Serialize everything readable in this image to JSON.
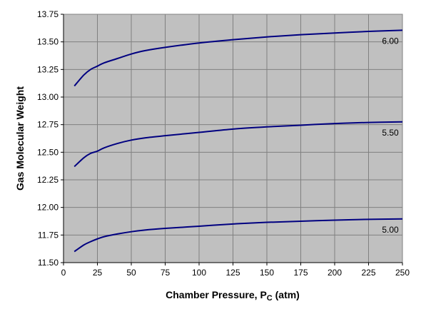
{
  "chart_data": {
    "type": "line",
    "title": "",
    "xlabel": "Chamber Pressure, ",
    "xlabel_symbol": "P",
    "xlabel_subscript": "C",
    "xlabel_unit": " (atm)",
    "ylabel": "Gas Molecular Weight",
    "xlim": [
      0,
      250
    ],
    "ylim": [
      11.5,
      13.75
    ],
    "x_ticks": [
      0,
      25,
      50,
      75,
      100,
      125,
      150,
      175,
      200,
      225,
      250
    ],
    "x_tick_labels": [
      "0",
      "25",
      "50",
      "75",
      "100",
      "125",
      "150",
      "175",
      "200",
      "225",
      "250"
    ],
    "y_ticks": [
      11.5,
      11.75,
      12.0,
      12.25,
      12.5,
      12.75,
      13.0,
      13.25,
      13.5,
      13.75
    ],
    "y_tick_labels": [
      "11.50",
      "11.75",
      "12.00",
      "12.25",
      "12.50",
      "12.75",
      "13.00",
      "13.25",
      "13.50",
      "13.75"
    ],
    "grid": true,
    "plot_background": "#C0C0C0",
    "grid_color": "#808080",
    "line_color": "#000080",
    "series": [
      {
        "label": "6.00",
        "x": [
          8,
          15,
          20,
          25,
          30,
          40,
          50,
          60,
          75,
          100,
          125,
          150,
          175,
          200,
          225,
          250
        ],
        "y": [
          13.1,
          13.2,
          13.25,
          13.28,
          13.31,
          13.35,
          13.39,
          13.42,
          13.45,
          13.49,
          13.52,
          13.545,
          13.565,
          13.58,
          13.595,
          13.605
        ]
      },
      {
        "label": "5.50",
        "x": [
          8,
          15,
          20,
          25,
          30,
          40,
          50,
          60,
          75,
          100,
          125,
          150,
          175,
          200,
          225,
          250
        ],
        "y": [
          12.37,
          12.45,
          12.49,
          12.51,
          12.54,
          12.58,
          12.61,
          12.63,
          12.65,
          12.68,
          12.71,
          12.73,
          12.745,
          12.76,
          12.77,
          12.775
        ]
      },
      {
        "label": "5.00",
        "x": [
          8,
          15,
          20,
          25,
          30,
          40,
          50,
          60,
          75,
          100,
          125,
          150,
          175,
          200,
          225,
          250
        ],
        "y": [
          11.6,
          11.66,
          11.69,
          11.715,
          11.735,
          11.76,
          11.78,
          11.795,
          11.81,
          11.83,
          11.85,
          11.865,
          11.875,
          11.885,
          11.892,
          11.896
        ]
      }
    ]
  }
}
